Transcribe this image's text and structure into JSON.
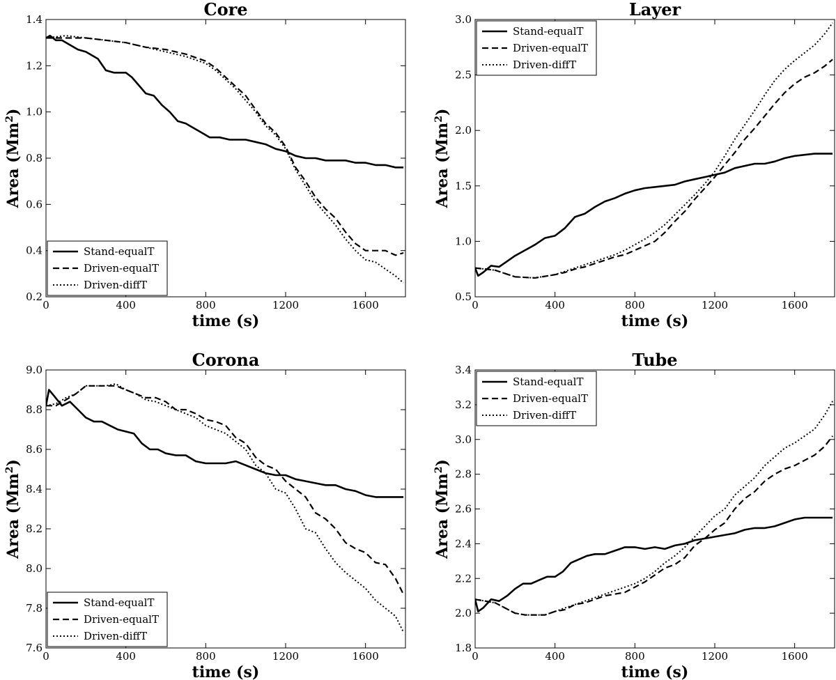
{
  "chart_data": [
    {
      "type": "line",
      "title": "Core",
      "xlabel": "time (s)",
      "ylabel_main": "Area (Mm",
      "ylabel_sup": "2",
      "ylabel_end": ")",
      "xlim": [
        0,
        1800
      ],
      "ylim": [
        0.2,
        1.4
      ],
      "xticks": [
        0,
        400,
        800,
        1200,
        1600
      ],
      "yticks": [
        0.2,
        0.4,
        0.6,
        0.8,
        1.0,
        1.2,
        1.4
      ],
      "legend_position": "lower-left",
      "series": [
        {
          "name": "Stand-equalT",
          "style": "solid",
          "x": [
            0,
            20,
            50,
            80,
            120,
            160,
            200,
            260,
            300,
            340,
            400,
            430,
            460,
            500,
            540,
            580,
            620,
            660,
            700,
            740,
            780,
            820,
            870,
            920,
            960,
            1000,
            1050,
            1100,
            1150,
            1200,
            1250,
            1300,
            1350,
            1400,
            1450,
            1500,
            1550,
            1600,
            1650,
            1700,
            1750,
            1790
          ],
          "y": [
            1.32,
            1.33,
            1.31,
            1.31,
            1.29,
            1.27,
            1.26,
            1.23,
            1.18,
            1.17,
            1.17,
            1.15,
            1.12,
            1.08,
            1.07,
            1.03,
            1.0,
            0.96,
            0.95,
            0.93,
            0.91,
            0.89,
            0.89,
            0.88,
            0.88,
            0.88,
            0.87,
            0.86,
            0.84,
            0.83,
            0.81,
            0.8,
            0.8,
            0.79,
            0.79,
            0.79,
            0.78,
            0.78,
            0.77,
            0.77,
            0.76,
            0.76
          ]
        },
        {
          "name": "Driven-equalT",
          "style": "dashed",
          "x": [
            0,
            100,
            200,
            300,
            400,
            500,
            600,
            700,
            800,
            850,
            900,
            950,
            1000,
            1050,
            1100,
            1150,
            1200,
            1250,
            1300,
            1350,
            1400,
            1450,
            1500,
            1550,
            1600,
            1650,
            1700,
            1750,
            1790
          ],
          "y": [
            1.32,
            1.32,
            1.32,
            1.31,
            1.3,
            1.28,
            1.27,
            1.25,
            1.22,
            1.19,
            1.15,
            1.11,
            1.07,
            1.01,
            0.95,
            0.91,
            0.85,
            0.76,
            0.7,
            0.63,
            0.58,
            0.54,
            0.48,
            0.43,
            0.4,
            0.4,
            0.4,
            0.38,
            0.39
          ]
        },
        {
          "name": "Driven-diffT",
          "style": "dotted",
          "x": [
            0,
            100,
            200,
            300,
            400,
            500,
            600,
            700,
            800,
            850,
            900,
            950,
            1000,
            1050,
            1100,
            1150,
            1200,
            1250,
            1300,
            1350,
            1400,
            1450,
            1500,
            1550,
            1600,
            1650,
            1700,
            1750,
            1790
          ],
          "y": [
            1.32,
            1.33,
            1.32,
            1.31,
            1.3,
            1.28,
            1.26,
            1.24,
            1.21,
            1.18,
            1.14,
            1.1,
            1.05,
            1.0,
            0.94,
            0.9,
            0.84,
            0.75,
            0.68,
            0.61,
            0.56,
            0.51,
            0.45,
            0.4,
            0.36,
            0.35,
            0.32,
            0.29,
            0.26
          ]
        }
      ]
    },
    {
      "type": "line",
      "title": "Layer",
      "xlabel": "time (s)",
      "ylabel_main": "Area (Mm",
      "ylabel_sup": "2",
      "ylabel_end": ")",
      "xlim": [
        0,
        1800
      ],
      "ylim": [
        0.5,
        3.0
      ],
      "xticks": [
        0,
        400,
        800,
        1200,
        1600
      ],
      "yticks": [
        0.5,
        1.0,
        1.5,
        2.0,
        2.5,
        3.0
      ],
      "legend_position": "upper-left",
      "series": [
        {
          "name": "Stand-equalT",
          "style": "solid",
          "x": [
            0,
            15,
            40,
            80,
            120,
            160,
            200,
            250,
            300,
            350,
            400,
            450,
            500,
            550,
            600,
            650,
            700,
            750,
            800,
            850,
            900,
            950,
            1000,
            1050,
            1100,
            1150,
            1200,
            1250,
            1300,
            1350,
            1400,
            1450,
            1500,
            1550,
            1600,
            1650,
            1700,
            1750,
            1790
          ],
          "y": [
            0.76,
            0.69,
            0.72,
            0.78,
            0.77,
            0.82,
            0.87,
            0.92,
            0.97,
            1.03,
            1.05,
            1.12,
            1.22,
            1.25,
            1.31,
            1.36,
            1.39,
            1.43,
            1.46,
            1.48,
            1.49,
            1.5,
            1.51,
            1.54,
            1.56,
            1.58,
            1.6,
            1.62,
            1.66,
            1.68,
            1.7,
            1.7,
            1.72,
            1.75,
            1.77,
            1.78,
            1.79,
            1.79,
            1.79
          ]
        },
        {
          "name": "Driven-equalT",
          "style": "dashed",
          "x": [
            0,
            100,
            200,
            300,
            400,
            450,
            500,
            550,
            600,
            650,
            700,
            750,
            800,
            850,
            900,
            950,
            1000,
            1050,
            1100,
            1150,
            1200,
            1250,
            1300,
            1350,
            1400,
            1450,
            1500,
            1550,
            1600,
            1650,
            1700,
            1750,
            1790
          ],
          "y": [
            0.76,
            0.74,
            0.68,
            0.67,
            0.7,
            0.72,
            0.75,
            0.77,
            0.8,
            0.83,
            0.86,
            0.88,
            0.92,
            0.96,
            1.0,
            1.08,
            1.18,
            1.27,
            1.38,
            1.48,
            1.58,
            1.69,
            1.8,
            1.92,
            2.02,
            2.13,
            2.24,
            2.34,
            2.42,
            2.48,
            2.52,
            2.58,
            2.64
          ]
        },
        {
          "name": "Driven-diffT",
          "style": "dotted",
          "x": [
            0,
            100,
            200,
            300,
            400,
            450,
            500,
            550,
            600,
            650,
            700,
            750,
            800,
            850,
            900,
            950,
            1000,
            1050,
            1100,
            1150,
            1200,
            1250,
            1300,
            1350,
            1400,
            1450,
            1500,
            1550,
            1600,
            1650,
            1700,
            1750,
            1790
          ],
          "y": [
            0.76,
            0.74,
            0.68,
            0.67,
            0.7,
            0.73,
            0.76,
            0.79,
            0.82,
            0.85,
            0.88,
            0.92,
            0.97,
            1.02,
            1.08,
            1.15,
            1.24,
            1.33,
            1.42,
            1.52,
            1.63,
            1.77,
            1.92,
            2.05,
            2.18,
            2.32,
            2.45,
            2.55,
            2.63,
            2.7,
            2.77,
            2.87,
            2.97
          ]
        }
      ]
    },
    {
      "type": "line",
      "title": "Corona",
      "xlabel": "time (s)",
      "ylabel_main": "Area (Mm",
      "ylabel_sup": "2",
      "ylabel_end": ")",
      "xlim": [
        0,
        1800
      ],
      "ylim": [
        7.6,
        9.0
      ],
      "xticks": [
        0,
        400,
        800,
        1200,
        1600
      ],
      "yticks": [
        7.6,
        7.8,
        8.0,
        8.2,
        8.4,
        8.6,
        8.8,
        9.0
      ],
      "legend_position": "lower-left",
      "series": [
        {
          "name": "Stand-equalT",
          "style": "solid",
          "x": [
            0,
            15,
            40,
            80,
            120,
            160,
            200,
            240,
            280,
            320,
            360,
            400,
            440,
            480,
            520,
            560,
            600,
            650,
            700,
            750,
            800,
            850,
            900,
            950,
            1000,
            1050,
            1100,
            1150,
            1200,
            1250,
            1300,
            1350,
            1400,
            1450,
            1500,
            1550,
            1600,
            1650,
            1700,
            1750,
            1790
          ],
          "y": [
            8.82,
            8.9,
            8.87,
            8.82,
            8.84,
            8.8,
            8.76,
            8.74,
            8.74,
            8.72,
            8.7,
            8.69,
            8.68,
            8.63,
            8.6,
            8.6,
            8.58,
            8.57,
            8.57,
            8.54,
            8.53,
            8.53,
            8.53,
            8.54,
            8.52,
            8.5,
            8.48,
            8.47,
            8.47,
            8.45,
            8.44,
            8.43,
            8.42,
            8.42,
            8.4,
            8.39,
            8.37,
            8.36,
            8.36,
            8.36,
            8.36
          ]
        },
        {
          "name": "Driven-equalT",
          "style": "dashed",
          "x": [
            0,
            50,
            100,
            150,
            200,
            250,
            300,
            350,
            400,
            450,
            500,
            550,
            600,
            650,
            700,
            750,
            800,
            850,
            900,
            950,
            1000,
            1050,
            1100,
            1150,
            1200,
            1250,
            1300,
            1350,
            1400,
            1450,
            1500,
            1550,
            1600,
            1650,
            1700,
            1750,
            1790
          ],
          "y": [
            8.82,
            8.82,
            8.85,
            8.88,
            8.92,
            8.92,
            8.92,
            8.92,
            8.9,
            8.88,
            8.86,
            8.86,
            8.84,
            8.8,
            8.8,
            8.78,
            8.75,
            8.74,
            8.72,
            8.66,
            8.63,
            8.56,
            8.52,
            8.5,
            8.44,
            8.4,
            8.36,
            8.28,
            8.25,
            8.2,
            8.13,
            8.1,
            8.08,
            8.03,
            8.02,
            7.95,
            7.87
          ]
        },
        {
          "name": "Driven-diffT",
          "style": "dotted",
          "x": [
            0,
            50,
            100,
            150,
            200,
            250,
            300,
            350,
            400,
            450,
            500,
            550,
            600,
            650,
            700,
            750,
            800,
            850,
            900,
            950,
            1000,
            1050,
            1100,
            1150,
            1200,
            1250,
            1300,
            1350,
            1400,
            1450,
            1500,
            1550,
            1600,
            1650,
            1700,
            1750,
            1790
          ],
          "y": [
            8.82,
            8.83,
            8.86,
            8.88,
            8.92,
            8.92,
            8.92,
            8.93,
            8.9,
            8.88,
            8.85,
            8.84,
            8.82,
            8.8,
            8.78,
            8.76,
            8.72,
            8.7,
            8.68,
            8.64,
            8.6,
            8.52,
            8.48,
            8.4,
            8.38,
            8.3,
            8.2,
            8.18,
            8.1,
            8.03,
            7.98,
            7.94,
            7.9,
            7.84,
            7.8,
            7.76,
            7.68
          ]
        }
      ]
    },
    {
      "type": "line",
      "title": "Tube",
      "xlabel": "time (s)",
      "ylabel_main": "Area (Mm",
      "ylabel_sup": "2",
      "ylabel_end": ")",
      "xlim": [
        0,
        1800
      ],
      "ylim": [
        1.8,
        3.4
      ],
      "xticks": [
        0,
        400,
        800,
        1200,
        1600
      ],
      "yticks": [
        1.8,
        2.0,
        2.2,
        2.4,
        2.6,
        2.8,
        3.0,
        3.2,
        3.4
      ],
      "legend_position": "upper-left",
      "series": [
        {
          "name": "Stand-equalT",
          "style": "solid",
          "x": [
            0,
            15,
            40,
            80,
            120,
            160,
            200,
            240,
            280,
            320,
            360,
            400,
            440,
            480,
            520,
            560,
            600,
            650,
            700,
            750,
            800,
            850,
            900,
            950,
            1000,
            1050,
            1100,
            1150,
            1200,
            1250,
            1300,
            1350,
            1400,
            1450,
            1500,
            1550,
            1600,
            1650,
            1700,
            1750,
            1790
          ],
          "y": [
            2.08,
            2.01,
            2.03,
            2.08,
            2.07,
            2.1,
            2.14,
            2.17,
            2.17,
            2.19,
            2.21,
            2.21,
            2.24,
            2.29,
            2.31,
            2.33,
            2.34,
            2.34,
            2.36,
            2.38,
            2.38,
            2.37,
            2.38,
            2.37,
            2.39,
            2.4,
            2.42,
            2.43,
            2.44,
            2.45,
            2.46,
            2.48,
            2.49,
            2.49,
            2.5,
            2.52,
            2.54,
            2.55,
            2.55,
            2.55,
            2.55
          ]
        },
        {
          "name": "Driven-equalT",
          "style": "dashed",
          "x": [
            0,
            100,
            200,
            250,
            300,
            350,
            400,
            450,
            500,
            550,
            600,
            650,
            700,
            750,
            800,
            850,
            900,
            950,
            1000,
            1050,
            1100,
            1150,
            1200,
            1250,
            1300,
            1350,
            1400,
            1450,
            1500,
            1550,
            1600,
            1650,
            1700,
            1750,
            1790
          ],
          "y": [
            2.08,
            2.06,
            2.0,
            1.99,
            1.99,
            1.99,
            2.01,
            2.02,
            2.05,
            2.06,
            2.08,
            2.1,
            2.11,
            2.12,
            2.15,
            2.18,
            2.22,
            2.26,
            2.28,
            2.32,
            2.39,
            2.43,
            2.48,
            2.52,
            2.6,
            2.66,
            2.7,
            2.76,
            2.8,
            2.83,
            2.85,
            2.88,
            2.91,
            2.96,
            3.02
          ]
        },
        {
          "name": "Driven-diffT",
          "style": "dotted",
          "x": [
            0,
            100,
            200,
            250,
            300,
            350,
            400,
            450,
            500,
            550,
            600,
            650,
            700,
            750,
            800,
            850,
            900,
            950,
            1000,
            1050,
            1100,
            1150,
            1200,
            1250,
            1300,
            1350,
            1400,
            1450,
            1500,
            1550,
            1600,
            1650,
            1700,
            1750,
            1790
          ],
          "y": [
            2.08,
            2.06,
            2.0,
            1.99,
            1.99,
            1.99,
            2.01,
            2.03,
            2.05,
            2.07,
            2.09,
            2.11,
            2.13,
            2.15,
            2.17,
            2.2,
            2.24,
            2.29,
            2.33,
            2.38,
            2.44,
            2.5,
            2.56,
            2.6,
            2.68,
            2.73,
            2.78,
            2.85,
            2.9,
            2.95,
            2.98,
            3.02,
            3.06,
            3.14,
            3.22
          ]
        }
      ]
    }
  ]
}
